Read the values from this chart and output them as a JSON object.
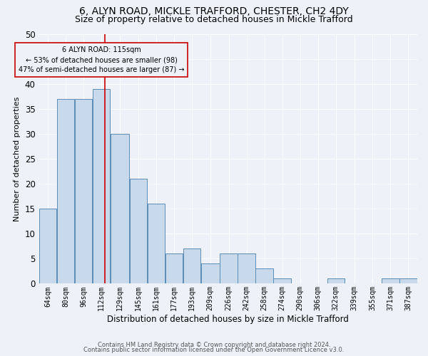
{
  "title1": "6, ALYN ROAD, MICKLE TRAFFORD, CHESTER, CH2 4DY",
  "title2": "Size of property relative to detached houses in Mickle Trafford",
  "xlabel": "Distribution of detached houses by size in Mickle Trafford",
  "ylabel": "Number of detached properties",
  "bar_color": "#c9d9ec",
  "bar_edge_color": "#5b8db8",
  "annotation_line_color": "#cc0000",
  "annotation_box_color": "#cc0000",
  "annotation_text_line1": "6 ALYN ROAD: 115sqm",
  "annotation_text_line2": "← 53% of detached houses are smaller (98)",
  "annotation_text_line3": "47% of semi-detached houses are larger (87) →",
  "categories": [
    "64sqm",
    "80sqm",
    "96sqm",
    "112sqm",
    "129sqm",
    "145sqm",
    "161sqm",
    "177sqm",
    "193sqm",
    "209sqm",
    "226sqm",
    "242sqm",
    "258sqm",
    "274sqm",
    "290sqm",
    "306sqm",
    "322sqm",
    "339sqm",
    "355sqm",
    "371sqm",
    "387sqm"
  ],
  "values": [
    15,
    37,
    37,
    39,
    30,
    21,
    16,
    6,
    7,
    4,
    6,
    6,
    3,
    1,
    0,
    0,
    1,
    0,
    0,
    1,
    1
  ],
  "bin_edges": [
    56,
    72,
    88,
    104,
    120,
    137,
    153,
    169,
    185,
    201,
    218,
    234,
    250,
    266,
    282,
    298,
    314,
    330,
    347,
    363,
    379,
    395
  ],
  "ylim": [
    0,
    50
  ],
  "vline_x": 115,
  "footer_line1": "Contains HM Land Registry data © Crown copyright and database right 2024.",
  "footer_line2": "Contains public sector information licensed under the Open Government Licence v3.0.",
  "bg_color": "#eef2f8",
  "title1_fontsize": 10,
  "title2_fontsize": 9,
  "xlabel_fontsize": 8.5,
  "ylabel_fontsize": 8,
  "grid_color": "#ffffff",
  "tick_fontsize": 7,
  "annotation_fontsize": 7,
  "footer_fontsize": 6
}
